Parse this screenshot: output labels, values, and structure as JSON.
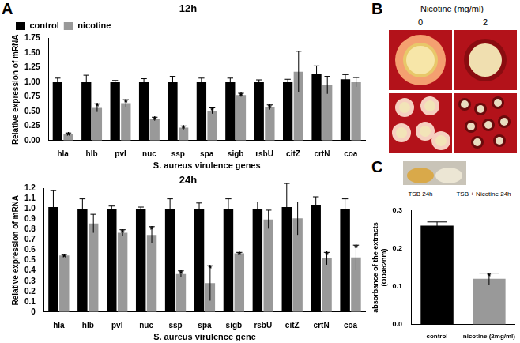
{
  "chart_data": [
    {
      "type": "bar",
      "title": "12h",
      "categories": [
        "hla",
        "hlb",
        "pvl",
        "nuc",
        "ssp",
        "spa",
        "sigb",
        "rsbU",
        "citZ",
        "crtN",
        "coa"
      ],
      "series": [
        {
          "name": "control",
          "color": "#000000",
          "values": [
            1.0,
            1.0,
            1.0,
            1.0,
            1.0,
            1.0,
            1.0,
            1.0,
            1.0,
            1.14,
            1.05
          ],
          "errors": [
            0.07,
            0.12,
            0.03,
            0.06,
            0.1,
            0.07,
            0.07,
            0.04,
            0.05,
            0.14,
            0.08
          ]
        },
        {
          "name": "nicotine",
          "color": "#999999",
          "values": [
            0.12,
            0.56,
            0.64,
            0.37,
            0.22,
            0.51,
            0.78,
            0.57,
            1.18,
            0.95,
            1.0
          ],
          "errors": [
            0.01,
            0.07,
            0.06,
            0.03,
            0.03,
            0.05,
            0.03,
            0.04,
            0.35,
            0.15,
            0.08
          ]
        }
      ],
      "x_label": "S. aureus virulence genes",
      "y_label": "Relative expression of mRNA",
      "ylim": [
        0,
        1.75
      ],
      "yticks": [
        {
          "value": 0,
          "label": "0.00"
        },
        0.25,
        {
          "value": 0.5,
          "label": "0.50"
        },
        0.75,
        {
          "value": 1,
          "label": "1.00"
        },
        1.25,
        {
          "value": 1.5,
          "label": "1.50"
        },
        1.75
      ],
      "legend": "top-left",
      "grid": false,
      "annotations": [
        {
          "category": "hla",
          "series": "nicotine",
          "text": "*"
        },
        {
          "category": "hlb",
          "series": "nicotine",
          "text": "*"
        },
        {
          "category": "pvl",
          "series": "nicotine",
          "text": "*"
        },
        {
          "category": "nuc",
          "series": "nicotine",
          "text": "*"
        },
        {
          "category": "ssp",
          "series": "nicotine",
          "text": "*"
        },
        {
          "category": "spa",
          "series": "nicotine",
          "text": "*"
        },
        {
          "category": "sigb",
          "series": "nicotine",
          "text": "*"
        },
        {
          "category": "rsbU",
          "series": "nicotine",
          "text": "*"
        }
      ]
    },
    {
      "type": "bar",
      "title": "24h",
      "categories": [
        "hla",
        "hlb",
        "pvl",
        "nuc",
        "ssp",
        "spa",
        "sigb",
        "rsbU",
        "citZ",
        "crtN",
        "coa"
      ],
      "series": [
        {
          "name": "control",
          "color": "#000000",
          "values": [
            1.02,
            1.0,
            1.0,
            1.0,
            1.0,
            1.0,
            1.0,
            1.0,
            1.02,
            1.04,
            1.0
          ],
          "errors": [
            0.16,
            0.1,
            0.03,
            0.02,
            0.1,
            0.06,
            0.1,
            0.07,
            0.23,
            0.08,
            0.1
          ]
        },
        {
          "name": "nicotine",
          "color": "#999999",
          "values": [
            0.55,
            0.86,
            0.77,
            0.75,
            0.37,
            0.28,
            0.57,
            0.9,
            0.91,
            0.52,
            0.53
          ],
          "errors": [
            0.01,
            0.09,
            0.03,
            0.08,
            0.03,
            0.17,
            0.01,
            0.09,
            0.16,
            0.06,
            0.12
          ]
        }
      ],
      "x_label": "S. aureus virulence gene",
      "y_label": "Relative expression of mRNA",
      "ylim": [
        0,
        1.2
      ],
      "yticks": [
        0,
        0.1,
        0.2,
        0.3,
        0.4,
        0.5,
        0.6,
        0.7,
        0.8,
        0.9,
        {
          "value": 1,
          "label": "1.0"
        },
        1.1,
        1.2
      ],
      "grid": false,
      "annotations": [
        {
          "category": "hla",
          "series": "nicotine",
          "text": "*"
        },
        {
          "category": "pvl",
          "series": "nicotine",
          "text": "*"
        },
        {
          "category": "nuc",
          "series": "nicotine",
          "text": "*"
        },
        {
          "category": "ssp",
          "series": "nicotine",
          "text": "*"
        },
        {
          "category": "spa",
          "series": "nicotine",
          "text": "*"
        },
        {
          "category": "sigb",
          "series": "nicotine",
          "text": "*"
        },
        {
          "category": "crtN",
          "series": "nicotine",
          "text": "*"
        },
        {
          "category": "coa",
          "series": "nicotine",
          "text": "*"
        }
      ]
    },
    {
      "type": "bar",
      "categories": [
        "control",
        "nicotine (2mg/ml)"
      ],
      "values": [
        0.26,
        0.12
      ],
      "errors": [
        0.01,
        0.015
      ],
      "colors": [
        "#000000",
        "#999999"
      ],
      "y_label": "absorbance of the extracts (OD462nm)",
      "ylim": [
        0,
        0.3
      ],
      "yticks": [
        {
          "value": 0,
          "label": "0.0"
        },
        0.1,
        0.2,
        0.3
      ],
      "grid": false,
      "annotations": [
        {
          "category": "nicotine (2mg/ml)",
          "text": "*"
        }
      ]
    }
  ],
  "panel_labels": [
    "A",
    "B",
    "C"
  ],
  "panel_b": {
    "title": "Nicotine (mg/ml)",
    "columns": [
      "0",
      "2"
    ]
  },
  "panel_c_photo_labels": [
    "TSB 24h",
    "TSB + Nicotine 24h"
  ]
}
